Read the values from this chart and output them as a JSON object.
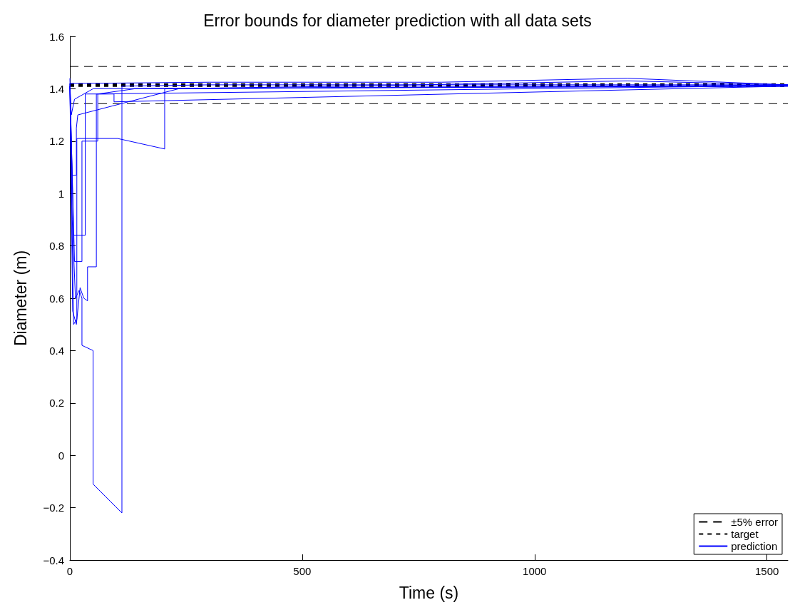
{
  "chart_data": {
    "type": "line",
    "title": "Error bounds for diameter prediction with all data sets",
    "xlabel": "Time (s)",
    "ylabel": "Diameter (m)",
    "xlim": [
      0,
      1545
    ],
    "ylim": [
      -0.4,
      1.6
    ],
    "xticks": [
      0,
      500,
      1000,
      1500
    ],
    "yticks": [
      -0.4,
      -0.2,
      0,
      0.2,
      0.4,
      0.6,
      0.8,
      1,
      1.2,
      1.4,
      1.6
    ],
    "grid": false,
    "legend": "bottom right",
    "marker": "none",
    "series": [
      {
        "name": "±5% error",
        "color": "#000000",
        "line_style": "dashed",
        "x": [
          0,
          1545
        ],
        "values": [
          1.485,
          1.485
        ]
      },
      {
        "color": "#000000",
        "line_style": "dashed",
        "x": [
          0,
          1545
        ],
        "values": [
          1.343,
          1.343
        ]
      },
      {
        "name": "target",
        "color": "#000000",
        "line_style": "dotted",
        "x": [
          0,
          1545
        ],
        "values": [
          1.414,
          1.414
        ]
      },
      {
        "name": "prediction",
        "color": "#0000ff",
        "line_style": "solid",
        "x": [
          0,
          5,
          12,
          20,
          26,
          26,
          50,
          50,
          112,
          112,
          300,
          1000,
          1545
        ],
        "values": [
          1.41,
          0.9,
          0.6,
          0.63,
          0.6,
          0.42,
          0.4,
          -0.11,
          -0.22,
          1.41,
          1.415,
          1.415,
          1.415
        ]
      },
      {
        "color": "#0000ff",
        "line_style": "solid",
        "x": [
          0,
          8,
          15,
          15,
          103,
          204,
          204,
          600,
          1200,
          1545
        ],
        "values": [
          1.41,
          0.5,
          0.52,
          1.21,
          1.21,
          1.17,
          1.4,
          1.41,
          1.43,
          1.415
        ]
      },
      {
        "color": "#0000ff",
        "line_style": "solid",
        "x": [
          0,
          10,
          26,
          26,
          60,
          60,
          140,
          1545
        ],
        "values": [
          1.42,
          0.74,
          0.74,
          1.2,
          1.2,
          1.38,
          1.4,
          1.41
        ]
      },
      {
        "color": "#0000ff",
        "line_style": "solid",
        "x": [
          0,
          8,
          33,
          33,
          60,
          1545
        ],
        "values": [
          1.41,
          0.84,
          0.84,
          1.38,
          1.38,
          1.412
        ]
      },
      {
        "color": "#0000ff",
        "line_style": "solid",
        "x": [
          0,
          6,
          14,
          22,
          30,
          38,
          38,
          57,
          57,
          95,
          95,
          1545
        ],
        "values": [
          1.41,
          0.55,
          0.5,
          0.64,
          0.6,
          0.59,
          0.72,
          0.72,
          1.38,
          1.38,
          1.35,
          1.41
        ]
      },
      {
        "color": "#0000ff",
        "line_style": "solid",
        "x": [
          0,
          5,
          14,
          14,
          17,
          234,
          700,
          1545
        ],
        "values": [
          1.44,
          1.07,
          1.07,
          1.25,
          1.3,
          1.4,
          1.405,
          1.41
        ]
      },
      {
        "color": "#0000ff",
        "line_style": "solid",
        "x": [
          0,
          3,
          10,
          50,
          1545
        ],
        "values": [
          1.42,
          1.3,
          1.36,
          1.4,
          1.414
        ]
      },
      {
        "color": "#0000ff",
        "line_style": "solid",
        "x": [
          0,
          300,
          800,
          1200,
          1545
        ],
        "values": [
          1.42,
          1.425,
          1.425,
          1.44,
          1.415
        ]
      }
    ]
  }
}
